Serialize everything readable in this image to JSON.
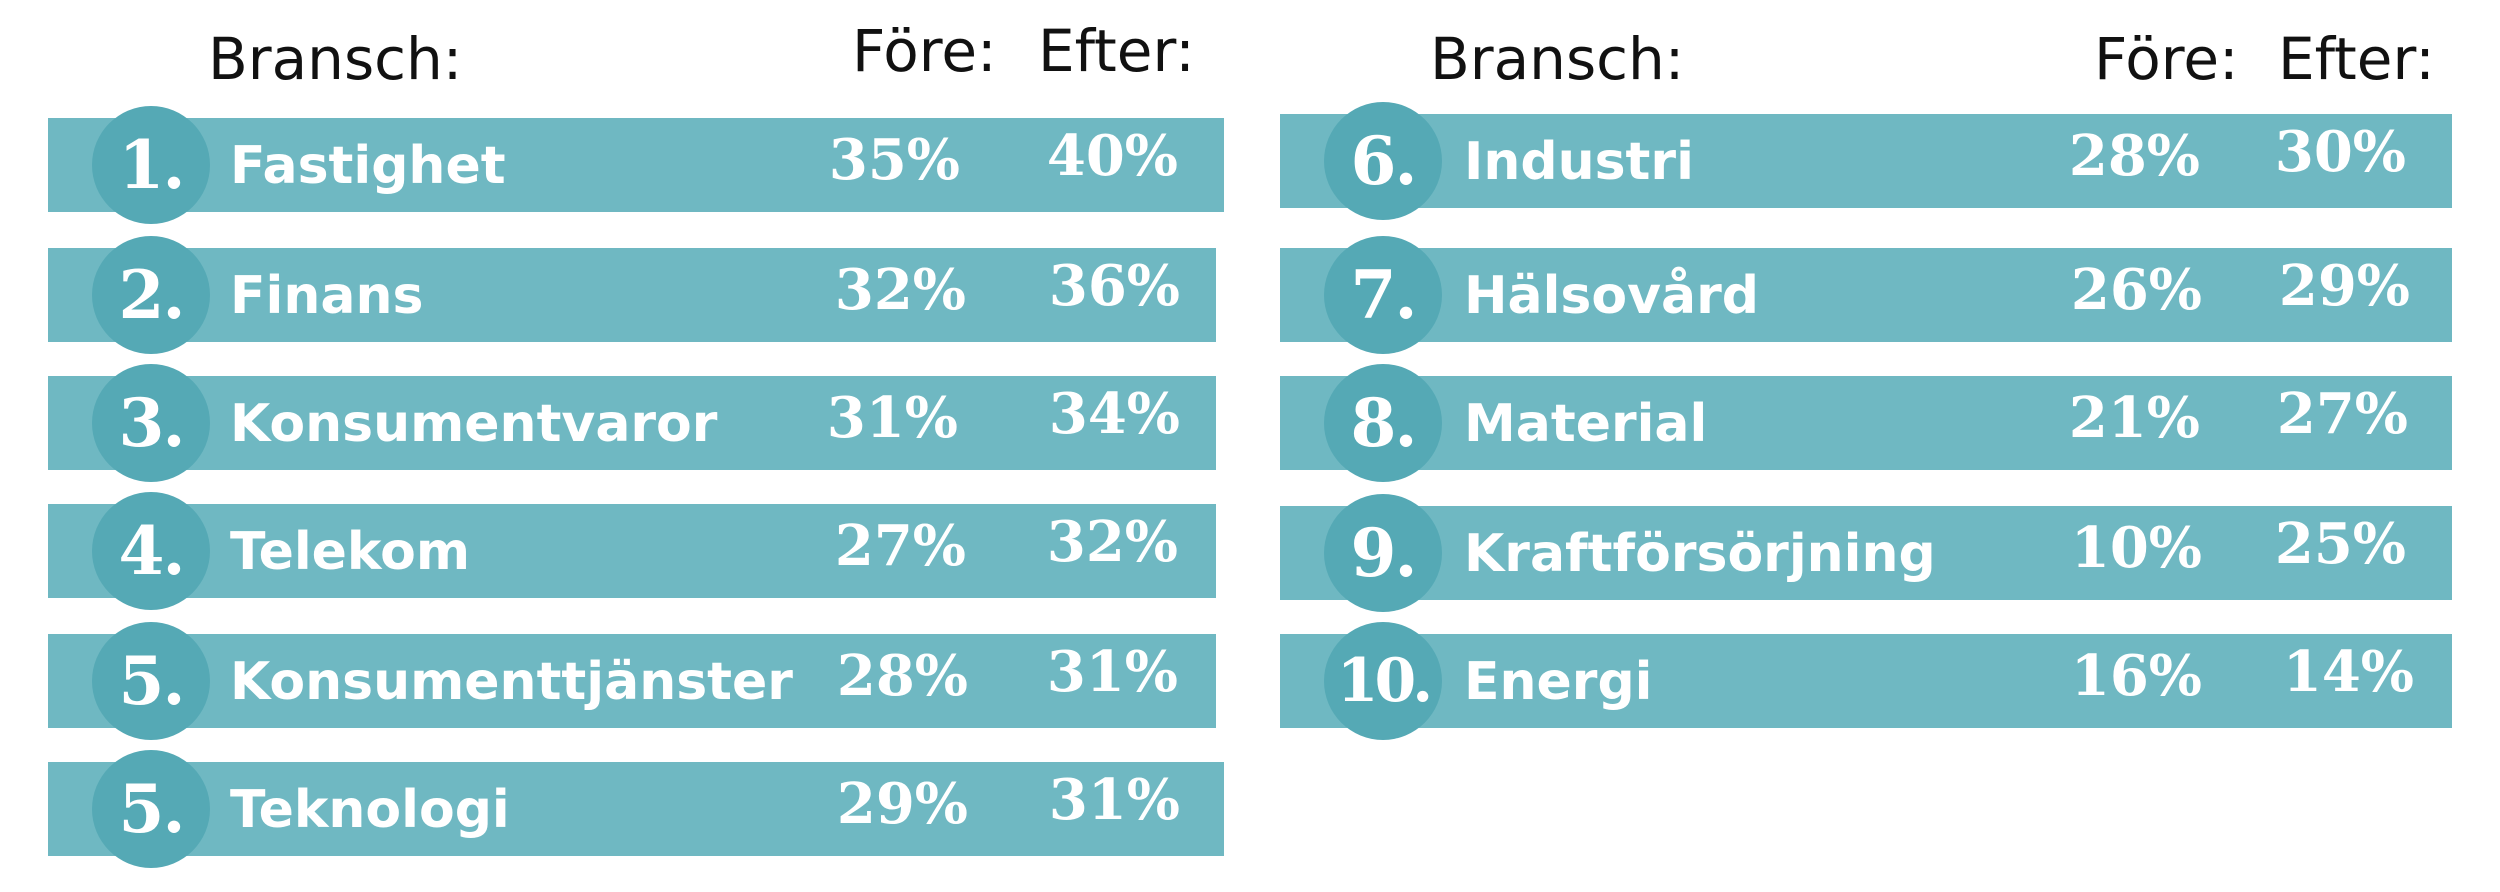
{
  "chart_data": {
    "type": "table",
    "columns": [
      "Bransch:",
      "Före:",
      "Efter:"
    ],
    "rows": [
      {
        "rank": "1.",
        "sector": "Fastighet",
        "before": "35%",
        "after": "40%"
      },
      {
        "rank": "2.",
        "sector": "Finans",
        "before": "32%",
        "after": "36%"
      },
      {
        "rank": "3.",
        "sector": "Konsumentvaror",
        "before": "31%",
        "after": "34%"
      },
      {
        "rank": "4.",
        "sector": "Telekom",
        "before": "27%",
        "after": "32%"
      },
      {
        "rank": "5.",
        "sector": "Konsumenttjänster",
        "before": "28%",
        "after": "31%"
      },
      {
        "rank": "5.",
        "sector": "Teknologi",
        "before": "29%",
        "after": "31%"
      },
      {
        "rank": "6.",
        "sector": "Industri",
        "before": "28%",
        "after": "30%"
      },
      {
        "rank": "7.",
        "sector": "Hälsovård",
        "before": "26%",
        "after": "29%"
      },
      {
        "rank": "8.",
        "sector": "Material",
        "before": "21%",
        "after": "27%"
      },
      {
        "rank": "9.",
        "sector": "Kraftförsörjning",
        "before": "10%",
        "after": "25%"
      },
      {
        "rank": "10.",
        "sector": "Energi",
        "before": "16%",
        "after": "14%"
      }
    ]
  },
  "colors": {
    "bar": "#6fb8c2",
    "badge": "#55a9b5",
    "text_on_bar": "#ffffff",
    "header": "#111111"
  }
}
